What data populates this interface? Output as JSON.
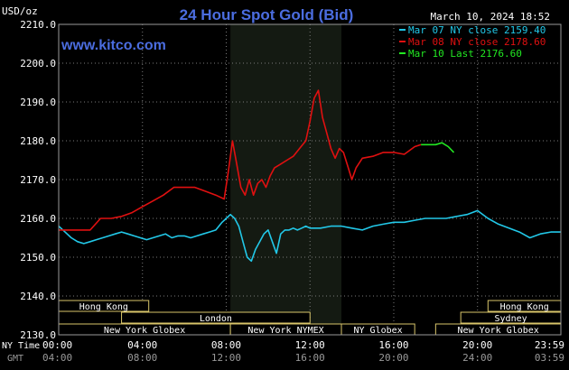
{
  "chart_data": {
    "type": "line",
    "title": "24 Hour Spot Gold (Bid)",
    "watermark": "www.kitco.com",
    "ylabel": "USD/oz",
    "timestamp": "March 10, 2024 18:52",
    "ylim": [
      2130,
      2210
    ],
    "y_ticks": [
      "2210.0",
      "2200.0",
      "2190.0",
      "2180.0",
      "2170.0",
      "2160.0",
      "2150.0",
      "2140.0",
      "2130.0"
    ],
    "x_axis_name_ny": "NY Time",
    "x_axis_name_gmt": "GMT",
    "x_ticks_ny": [
      "00:00",
      "04:00",
      "08:00",
      "12:00",
      "16:00",
      "20:00",
      "23:59"
    ],
    "x_ticks_gmt": [
      "04:00",
      "08:00",
      "12:00",
      "16:00",
      "20:00",
      "24:00",
      "03:59"
    ],
    "grid": true,
    "legend_placement": "top-right",
    "colors": {
      "cyan": "#22c8e8",
      "red": "#e01010",
      "green": "#22e822",
      "shade": "#141a12",
      "grid": "#7a7a7a",
      "title": "#4b6de0"
    },
    "series": [
      {
        "name": "Mar 07 NY close 2159.40",
        "color": "#22c8e8",
        "x": [
          0,
          0.3,
          0.6,
          0.9,
          1.2,
          1.5,
          1.8,
          2.1,
          2.4,
          2.7,
          3.0,
          3.3,
          3.6,
          3.9,
          4.2,
          4.5,
          4.8,
          5.1,
          5.4,
          5.7,
          6.0,
          6.3,
          6.6,
          6.9,
          7.2,
          7.5,
          7.8,
          8.0,
          8.2,
          8.4,
          8.6,
          8.8,
          9.0,
          9.2,
          9.4,
          9.6,
          9.8,
          10.0,
          10.2,
          10.4,
          10.6,
          10.8,
          11.0,
          11.2,
          11.4,
          11.6,
          11.8,
          12.0,
          12.5,
          13.0,
          13.5,
          14.0,
          14.5,
          15.0,
          15.5,
          16.0,
          16.5,
          17.0,
          17.5,
          18.0,
          18.5,
          19.0,
          19.5,
          20.0,
          20.5,
          21.0,
          21.5,
          22.0,
          22.5,
          23.0,
          23.5,
          23.98
        ],
        "values": [
          2158.0,
          2156.5,
          2155.0,
          2154.0,
          2153.5,
          2154.0,
          2154.5,
          2155.0,
          2155.5,
          2156.0,
          2156.5,
          2156.0,
          2155.5,
          2155.0,
          2154.5,
          2155.0,
          2155.5,
          2156.0,
          2155.0,
          2155.5,
          2155.5,
          2155.0,
          2155.5,
          2156.0,
          2156.5,
          2157.0,
          2159.0,
          2160.0,
          2161.0,
          2160.0,
          2158.0,
          2154.0,
          2150.0,
          2149.0,
          2152.0,
          2154.0,
          2156.0,
          2157.0,
          2154.0,
          2151.0,
          2156.0,
          2157.0,
          2157.0,
          2157.5,
          2157.0,
          2157.5,
          2158.0,
          2157.5,
          2157.5,
          2158.0,
          2158.0,
          2157.5,
          2157.0,
          2158.0,
          2158.5,
          2159.0,
          2159.0,
          2159.5,
          2160.0,
          2160.0,
          2160.0,
          2160.5,
          2161.0,
          2162.0,
          2160.0,
          2158.5,
          2157.5,
          2156.5,
          2155.0,
          2156.0,
          2156.5,
          2156.5
        ]
      },
      {
        "name": "Mar 08 NY close 2178.60",
        "color": "#e01010",
        "x": [
          0,
          0.5,
          1.0,
          1.5,
          2.0,
          2.5,
          3.0,
          3.5,
          4.0,
          4.5,
          5.0,
          5.5,
          6.0,
          6.5,
          7.0,
          7.5,
          7.9,
          8.1,
          8.3,
          8.5,
          8.7,
          8.9,
          9.1,
          9.3,
          9.5,
          9.7,
          9.9,
          10.1,
          10.3,
          10.6,
          10.9,
          11.2,
          11.5,
          11.8,
          12.0,
          12.2,
          12.4,
          12.6,
          12.8,
          13.0,
          13.2,
          13.4,
          13.6,
          13.8,
          14.0,
          14.2,
          14.5,
          15.0,
          15.5,
          16.0,
          16.5,
          17.0,
          17.3
        ],
        "values": [
          2157.0,
          2157.0,
          2157.0,
          2157.0,
          2160.0,
          2160.0,
          2160.5,
          2161.5,
          2163.0,
          2164.5,
          2166.0,
          2168.0,
          2168.0,
          2168.0,
          2167.0,
          2166.0,
          2165.0,
          2172.0,
          2180.0,
          2174.0,
          2168.0,
          2166.0,
          2170.0,
          2166.0,
          2169.0,
          2170.0,
          2168.0,
          2171.0,
          2173.0,
          2174.0,
          2175.0,
          2176.0,
          2178.0,
          2180.0,
          2185.0,
          2191.0,
          2193.0,
          2186.0,
          2182.0,
          2178.0,
          2175.5,
          2178.0,
          2177.0,
          2173.5,
          2170.0,
          2173.0,
          2175.5,
          2176.0,
          2177.0,
          2177.0,
          2176.5,
          2178.5,
          2179.0
        ]
      },
      {
        "name": "Mar 10 Last 2176.60",
        "color": "#22e822",
        "x": [
          17.3,
          17.6,
          18.0,
          18.3,
          18.6,
          18.87
        ],
        "values": [
          2179.0,
          2179.0,
          2179.0,
          2179.5,
          2178.5,
          2177.0
        ]
      }
    ],
    "sessions": [
      {
        "label": "Hong Kong",
        "row": 0,
        "start": 0,
        "end": 4.3
      },
      {
        "label": "Hong Kong",
        "row": 0,
        "start": 20.5,
        "end": 23.98
      },
      {
        "label": "London",
        "row": 1,
        "start": 3.0,
        "end": 12.0
      },
      {
        "label": "Sydney",
        "row": 1,
        "start": 19.2,
        "end": 23.98
      },
      {
        "label": "New York Globex",
        "row": 2,
        "start": 0,
        "end": 8.2
      },
      {
        "label": "New York NYMEX",
        "row": 2,
        "start": 8.2,
        "end": 13.5
      },
      {
        "label": "NY Globex",
        "row": 2,
        "start": 13.5,
        "end": 17.0
      },
      {
        "label": "New York Globex",
        "row": 2,
        "start": 18.0,
        "end": 23.98
      }
    ],
    "nymex_shade": [
      8.2,
      13.5
    ]
  }
}
